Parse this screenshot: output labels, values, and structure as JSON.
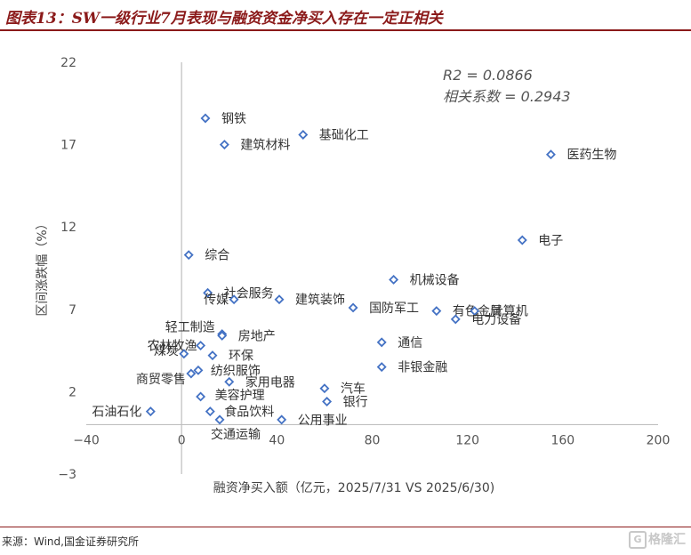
{
  "page": {
    "title": "图表13：SW一级行业7月表现与融资资金净买入存在一定正相关",
    "source": "来源：Wind,国金证券研究所",
    "watermark": "格隆汇"
  },
  "chart_data": {
    "type": "scatter",
    "title": "图表13：SW一级行业7月表现与融资资金净买入存在一定正相关",
    "xlabel": "融资净买入额（亿元，2025/7/31 VS 2025/6/30)",
    "ylabel": "区间涨跌幅（%）",
    "xlim": [
      -40,
      200
    ],
    "ylim": [
      -3,
      22
    ],
    "xticks": [
      "−40",
      "0",
      "40",
      "80",
      "120",
      "160",
      "200"
    ],
    "xtick_values": [
      -40,
      0,
      40,
      80,
      120,
      160,
      200
    ],
    "yticks": [
      "22",
      "17",
      "12",
      "7",
      "2",
      "−3"
    ],
    "ytick_values": [
      22,
      17,
      12,
      7,
      2,
      -3
    ],
    "annotations": [
      "R2 = 0.0866",
      "相关系数 = 0.2943"
    ],
    "marker_color": "#4472c4",
    "points": [
      {
        "label": "钢铁",
        "x": 10,
        "y": 18.6
      },
      {
        "label": "基础化工",
        "x": 51,
        "y": 17.6
      },
      {
        "label": "建筑材料",
        "x": 18,
        "y": 17.0
      },
      {
        "label": "医药生物",
        "x": 155,
        "y": 16.4
      },
      {
        "label": "电子",
        "x": 143,
        "y": 11.2
      },
      {
        "label": "综合",
        "x": 3,
        "y": 10.3
      },
      {
        "label": "机械设备",
        "x": 89,
        "y": 8.8
      },
      {
        "label": "社会服务",
        "x": 11,
        "y": 8.0
      },
      {
        "label": "传媒",
        "x": 22,
        "y": 7.6
      },
      {
        "label": "建筑装饰",
        "x": 41,
        "y": 7.6
      },
      {
        "label": "国防军工",
        "x": 72,
        "y": 7.1
      },
      {
        "label": "有色金属",
        "x": 107,
        "y": 6.9
      },
      {
        "label": "计算机",
        "x": 123,
        "y": 6.9
      },
      {
        "label": "电力设备",
        "x": 115,
        "y": 6.4
      },
      {
        "label": "轻工制造",
        "x": 17,
        "y": 5.5
      },
      {
        "label": "房地产",
        "x": 17,
        "y": 5.4
      },
      {
        "label": "通信",
        "x": 84,
        "y": 5.0
      },
      {
        "label": "农林牧渔",
        "x": 8,
        "y": 4.8
      },
      {
        "label": "环保",
        "x": 13,
        "y": 4.2
      },
      {
        "label": "煤炭",
        "x": 1,
        "y": 4.3
      },
      {
        "label": "非银金融",
        "x": 84,
        "y": 3.5
      },
      {
        "label": "纺织服饰",
        "x": 7,
        "y": 3.3
      },
      {
        "label": "商贸零售",
        "x": 4,
        "y": 3.1
      },
      {
        "label": "家用电器",
        "x": 20,
        "y": 2.6
      },
      {
        "label": "汽车",
        "x": 60,
        "y": 2.2
      },
      {
        "label": "美容护理",
        "x": 8,
        "y": 1.7
      },
      {
        "label": "银行",
        "x": 61,
        "y": 1.4
      },
      {
        "label": "石油石化",
        "x": -13,
        "y": 0.8
      },
      {
        "label": "食品饮料",
        "x": 12,
        "y": 0.8
      },
      {
        "label": "公用事业",
        "x": 42,
        "y": 0.3
      },
      {
        "label": "交通运输",
        "x": 16,
        "y": 0.3
      }
    ]
  }
}
